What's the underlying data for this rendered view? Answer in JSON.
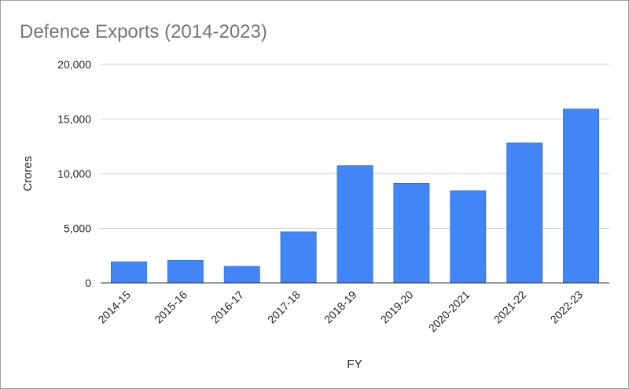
{
  "chart_data": {
    "type": "bar",
    "title": "Defence Exports (2014-2023)",
    "xlabel": "FY",
    "ylabel": "Crores",
    "categories": [
      "2014-15",
      "2015-16",
      "2016-17",
      "2017-18",
      "2018-19",
      "2019-20",
      "2020-2021",
      "2021-22",
      "2022-23"
    ],
    "values": [
      1940,
      2059,
      1521,
      4682,
      10746,
      9116,
      8435,
      12815,
      15920
    ],
    "ylim": [
      0,
      20000
    ],
    "yticks": [
      0,
      5000,
      10000,
      15000,
      20000
    ],
    "ytick_labels": [
      "0",
      "5,000",
      "10,000",
      "15,000",
      "20,000"
    ],
    "grid": true,
    "bar_color": "#4285f4"
  }
}
